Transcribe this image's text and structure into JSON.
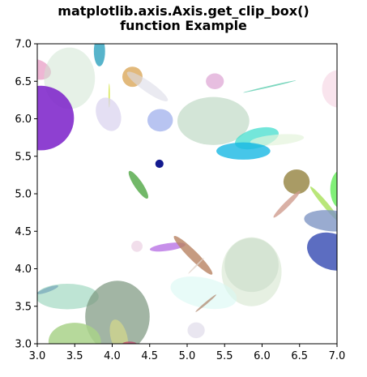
{
  "chart_data": {
    "type": "scatter",
    "title_line1": "matplotlib.axis.Axis.get_clip_box()",
    "title_line2": "function Example",
    "xlabel": "",
    "ylabel": "",
    "xlim": [
      3.0,
      7.0
    ],
    "ylim": [
      3.0,
      7.0
    ],
    "grid": false,
    "x_ticks": [
      "3.0",
      "3.5",
      "4.0",
      "4.5",
      "5.0",
      "5.5",
      "6.0",
      "6.5",
      "7.0"
    ],
    "y_ticks": [
      "3.0",
      "3.5",
      "4.0",
      "4.5",
      "5.0",
      "5.5",
      "6.0",
      "6.5",
      "7.0"
    ],
    "ellipses": [
      {
        "x": 2.99,
        "y": 6.66,
        "w": 0.4,
        "h": 0.26,
        "angle": -20,
        "color": "#e07ab0",
        "alpha": 0.55
      },
      {
        "x": 3.43,
        "y": 6.54,
        "w": 0.68,
        "h": 0.82,
        "angle": 0,
        "color": "#cde3cf",
        "alpha": 0.5
      },
      {
        "x": 3.05,
        "y": 6.01,
        "w": 0.88,
        "h": 0.86,
        "angle": 0,
        "color": "#7a1fc9",
        "alpha": 0.85
      },
      {
        "x": 3.83,
        "y": 6.9,
        "w": 0.15,
        "h": 0.4,
        "angle": 0,
        "color": "#3aa7c2",
        "alpha": 0.85
      },
      {
        "x": 4.27,
        "y": 6.56,
        "w": 0.27,
        "h": 0.27,
        "angle": 0,
        "color": "#dba85a",
        "alpha": 0.8
      },
      {
        "x": 4.47,
        "y": 6.43,
        "w": 0.66,
        "h": 0.14,
        "angle": -35,
        "color": "#dcdce8",
        "alpha": 0.6
      },
      {
        "x": 3.96,
        "y": 6.31,
        "w": 0.02,
        "h": 0.32,
        "angle": 0,
        "color": "#d9e85a",
        "alpha": 0.9
      },
      {
        "x": 3.95,
        "y": 6.06,
        "w": 0.32,
        "h": 0.46,
        "angle": 20,
        "color": "#d8d2ee",
        "alpha": 0.7
      },
      {
        "x": 4.64,
        "y": 5.98,
        "w": 0.34,
        "h": 0.3,
        "angle": 0,
        "color": "#9aabeb",
        "alpha": 0.7
      },
      {
        "x": 5.35,
        "y": 5.97,
        "w": 0.96,
        "h": 0.64,
        "angle": 0,
        "color": "#b6d4bd",
        "alpha": 0.6
      },
      {
        "x": 5.37,
        "y": 6.5,
        "w": 0.24,
        "h": 0.21,
        "angle": 0,
        "color": "#e1aed8",
        "alpha": 0.8
      },
      {
        "x": 6.1,
        "y": 6.43,
        "w": 0.72,
        "h": 0.02,
        "angle": 13,
        "color": "#6fd3b8",
        "alpha": 0.9
      },
      {
        "x": 7.02,
        "y": 6.4,
        "w": 0.44,
        "h": 0.5,
        "angle": 0,
        "color": "#f6d8e6",
        "alpha": 0.7
      },
      {
        "x": 5.93,
        "y": 5.74,
        "w": 0.6,
        "h": 0.26,
        "angle": 15,
        "color": "#38dccb",
        "alpha": 0.7
      },
      {
        "x": 6.2,
        "y": 5.72,
        "w": 0.72,
        "h": 0.14,
        "angle": 5,
        "color": "#e4f4dc",
        "alpha": 0.7
      },
      {
        "x": 5.75,
        "y": 5.57,
        "w": 0.72,
        "h": 0.23,
        "angle": 0,
        "color": "#18b8e4",
        "alpha": 0.8
      },
      {
        "x": 4.63,
        "y": 5.4,
        "w": 0.11,
        "h": 0.11,
        "angle": 0,
        "color": "#131a8f",
        "alpha": 1.0
      },
      {
        "x": 4.35,
        "y": 5.12,
        "w": 0.44,
        "h": 0.11,
        "angle": -56,
        "color": "#4fa643",
        "alpha": 0.8
      },
      {
        "x": 6.46,
        "y": 5.16,
        "w": 0.35,
        "h": 0.33,
        "angle": 0,
        "color": "#9a8a4a",
        "alpha": 0.85
      },
      {
        "x": 7.06,
        "y": 5.06,
        "w": 0.3,
        "h": 0.52,
        "angle": 0,
        "color": "#4ce83e",
        "alpha": 0.7
      },
      {
        "x": 6.33,
        "y": 4.86,
        "w": 0.5,
        "h": 0.07,
        "angle": 45,
        "color": "#cf9c8e",
        "alpha": 0.8
      },
      {
        "x": 6.85,
        "y": 4.85,
        "w": 0.64,
        "h": 0.07,
        "angle": -50,
        "color": "#a7e058",
        "alpha": 0.8
      },
      {
        "x": 6.92,
        "y": 4.64,
        "w": 0.72,
        "h": 0.28,
        "angle": -5,
        "color": "#7f96c4",
        "alpha": 0.8
      },
      {
        "x": 6.93,
        "y": 4.23,
        "w": 0.68,
        "h": 0.48,
        "angle": -20,
        "color": "#3348b2",
        "alpha": 0.8
      },
      {
        "x": 4.74,
        "y": 4.29,
        "w": 0.48,
        "h": 0.1,
        "angle": 8,
        "color": "#b46ae3",
        "alpha": 0.75
      },
      {
        "x": 4.33,
        "y": 4.3,
        "w": 0.15,
        "h": 0.15,
        "angle": 0,
        "color": "#eed6e6",
        "alpha": 0.8
      },
      {
        "x": 5.08,
        "y": 4.18,
        "w": 0.72,
        "h": 0.12,
        "angle": -45,
        "color": "#b88262",
        "alpha": 0.8
      },
      {
        "x": 5.86,
        "y": 3.96,
        "w": 0.8,
        "h": 0.92,
        "angle": 0,
        "color": "#dbe9d6",
        "alpha": 0.7
      },
      {
        "x": 5.86,
        "y": 4.05,
        "w": 0.72,
        "h": 0.72,
        "angle": 0,
        "color": "#c4d8c4",
        "alpha": 0.5
      },
      {
        "x": 5.22,
        "y": 3.68,
        "w": 0.9,
        "h": 0.4,
        "angle": -12,
        "color": "#d8f8f4",
        "alpha": 0.6
      },
      {
        "x": 5.12,
        "y": 4.04,
        "w": 0.3,
        "h": 0.02,
        "angle": 45,
        "color": "#e0d2c8",
        "alpha": 0.8
      },
      {
        "x": 5.25,
        "y": 3.54,
        "w": 0.36,
        "h": 0.03,
        "angle": 40,
        "color": "#b49078",
        "alpha": 0.8
      },
      {
        "x": 3.14,
        "y": 3.72,
        "w": 0.3,
        "h": 0.06,
        "angle": 20,
        "color": "#3454b4",
        "alpha": 0.85
      },
      {
        "x": 3.4,
        "y": 3.63,
        "w": 0.84,
        "h": 0.34,
        "angle": 0,
        "color": "#a2d8c2",
        "alpha": 0.7
      },
      {
        "x": 4.07,
        "y": 3.36,
        "w": 0.86,
        "h": 0.96,
        "angle": 0,
        "color": "#7a957e",
        "alpha": 0.7
      },
      {
        "x": 3.5,
        "y": 3.03,
        "w": 0.7,
        "h": 0.5,
        "angle": 0,
        "color": "#a9d28a",
        "alpha": 0.85
      },
      {
        "x": 4.09,
        "y": 3.09,
        "w": 0.22,
        "h": 0.48,
        "angle": 15,
        "color": "#d6d88a",
        "alpha": 0.7
      },
      {
        "x": 4.23,
        "y": 2.99,
        "w": 0.2,
        "h": 0.08,
        "angle": 0,
        "color": "#c33b66",
        "alpha": 0.7
      },
      {
        "x": 5.12,
        "y": 3.18,
        "w": 0.23,
        "h": 0.21,
        "angle": 0,
        "color": "#e4e0ec",
        "alpha": 0.8
      }
    ]
  }
}
